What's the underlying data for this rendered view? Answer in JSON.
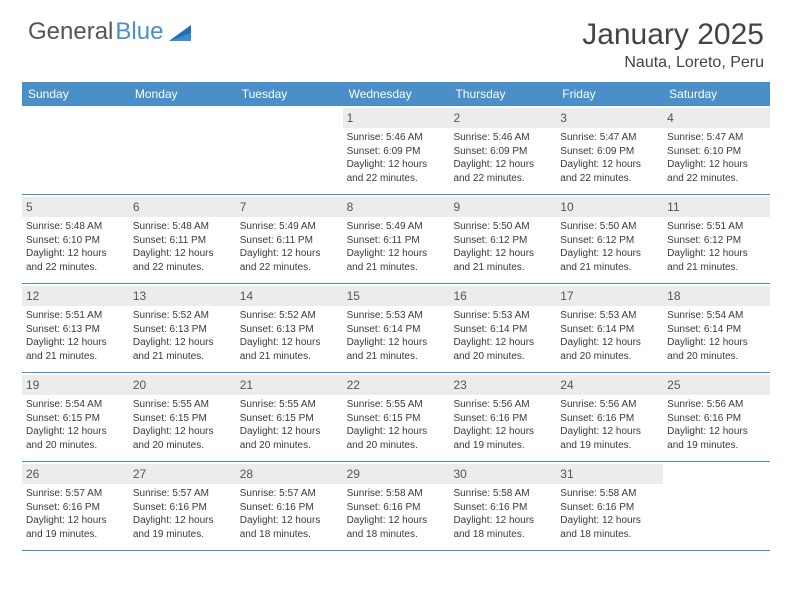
{
  "brand": {
    "part1": "General",
    "part2": "Blue"
  },
  "title": "January 2025",
  "location": "Nauta, Loreto, Peru",
  "colors": {
    "accent": "#4a8fc7",
    "header_bg": "#ececec",
    "text": "#3a3a3a",
    "background": "#ffffff"
  },
  "day_names": [
    "Sunday",
    "Monday",
    "Tuesday",
    "Wednesday",
    "Thursday",
    "Friday",
    "Saturday"
  ],
  "weeks": [
    [
      {
        "n": "",
        "sr": "",
        "ss": "",
        "dl": ""
      },
      {
        "n": "",
        "sr": "",
        "ss": "",
        "dl": ""
      },
      {
        "n": "",
        "sr": "",
        "ss": "",
        "dl": ""
      },
      {
        "n": "1",
        "sr": "Sunrise: 5:46 AM",
        "ss": "Sunset: 6:09 PM",
        "dl": "Daylight: 12 hours and 22 minutes."
      },
      {
        "n": "2",
        "sr": "Sunrise: 5:46 AM",
        "ss": "Sunset: 6:09 PM",
        "dl": "Daylight: 12 hours and 22 minutes."
      },
      {
        "n": "3",
        "sr": "Sunrise: 5:47 AM",
        "ss": "Sunset: 6:09 PM",
        "dl": "Daylight: 12 hours and 22 minutes."
      },
      {
        "n": "4",
        "sr": "Sunrise: 5:47 AM",
        "ss": "Sunset: 6:10 PM",
        "dl": "Daylight: 12 hours and 22 minutes."
      }
    ],
    [
      {
        "n": "5",
        "sr": "Sunrise: 5:48 AM",
        "ss": "Sunset: 6:10 PM",
        "dl": "Daylight: 12 hours and 22 minutes."
      },
      {
        "n": "6",
        "sr": "Sunrise: 5:48 AM",
        "ss": "Sunset: 6:11 PM",
        "dl": "Daylight: 12 hours and 22 minutes."
      },
      {
        "n": "7",
        "sr": "Sunrise: 5:49 AM",
        "ss": "Sunset: 6:11 PM",
        "dl": "Daylight: 12 hours and 22 minutes."
      },
      {
        "n": "8",
        "sr": "Sunrise: 5:49 AM",
        "ss": "Sunset: 6:11 PM",
        "dl": "Daylight: 12 hours and 21 minutes."
      },
      {
        "n": "9",
        "sr": "Sunrise: 5:50 AM",
        "ss": "Sunset: 6:12 PM",
        "dl": "Daylight: 12 hours and 21 minutes."
      },
      {
        "n": "10",
        "sr": "Sunrise: 5:50 AM",
        "ss": "Sunset: 6:12 PM",
        "dl": "Daylight: 12 hours and 21 minutes."
      },
      {
        "n": "11",
        "sr": "Sunrise: 5:51 AM",
        "ss": "Sunset: 6:12 PM",
        "dl": "Daylight: 12 hours and 21 minutes."
      }
    ],
    [
      {
        "n": "12",
        "sr": "Sunrise: 5:51 AM",
        "ss": "Sunset: 6:13 PM",
        "dl": "Daylight: 12 hours and 21 minutes."
      },
      {
        "n": "13",
        "sr": "Sunrise: 5:52 AM",
        "ss": "Sunset: 6:13 PM",
        "dl": "Daylight: 12 hours and 21 minutes."
      },
      {
        "n": "14",
        "sr": "Sunrise: 5:52 AM",
        "ss": "Sunset: 6:13 PM",
        "dl": "Daylight: 12 hours and 21 minutes."
      },
      {
        "n": "15",
        "sr": "Sunrise: 5:53 AM",
        "ss": "Sunset: 6:14 PM",
        "dl": "Daylight: 12 hours and 21 minutes."
      },
      {
        "n": "16",
        "sr": "Sunrise: 5:53 AM",
        "ss": "Sunset: 6:14 PM",
        "dl": "Daylight: 12 hours and 20 minutes."
      },
      {
        "n": "17",
        "sr": "Sunrise: 5:53 AM",
        "ss": "Sunset: 6:14 PM",
        "dl": "Daylight: 12 hours and 20 minutes."
      },
      {
        "n": "18",
        "sr": "Sunrise: 5:54 AM",
        "ss": "Sunset: 6:14 PM",
        "dl": "Daylight: 12 hours and 20 minutes."
      }
    ],
    [
      {
        "n": "19",
        "sr": "Sunrise: 5:54 AM",
        "ss": "Sunset: 6:15 PM",
        "dl": "Daylight: 12 hours and 20 minutes."
      },
      {
        "n": "20",
        "sr": "Sunrise: 5:55 AM",
        "ss": "Sunset: 6:15 PM",
        "dl": "Daylight: 12 hours and 20 minutes."
      },
      {
        "n": "21",
        "sr": "Sunrise: 5:55 AM",
        "ss": "Sunset: 6:15 PM",
        "dl": "Daylight: 12 hours and 20 minutes."
      },
      {
        "n": "22",
        "sr": "Sunrise: 5:55 AM",
        "ss": "Sunset: 6:15 PM",
        "dl": "Daylight: 12 hours and 20 minutes."
      },
      {
        "n": "23",
        "sr": "Sunrise: 5:56 AM",
        "ss": "Sunset: 6:16 PM",
        "dl": "Daylight: 12 hours and 19 minutes."
      },
      {
        "n": "24",
        "sr": "Sunrise: 5:56 AM",
        "ss": "Sunset: 6:16 PM",
        "dl": "Daylight: 12 hours and 19 minutes."
      },
      {
        "n": "25",
        "sr": "Sunrise: 5:56 AM",
        "ss": "Sunset: 6:16 PM",
        "dl": "Daylight: 12 hours and 19 minutes."
      }
    ],
    [
      {
        "n": "26",
        "sr": "Sunrise: 5:57 AM",
        "ss": "Sunset: 6:16 PM",
        "dl": "Daylight: 12 hours and 19 minutes."
      },
      {
        "n": "27",
        "sr": "Sunrise: 5:57 AM",
        "ss": "Sunset: 6:16 PM",
        "dl": "Daylight: 12 hours and 19 minutes."
      },
      {
        "n": "28",
        "sr": "Sunrise: 5:57 AM",
        "ss": "Sunset: 6:16 PM",
        "dl": "Daylight: 12 hours and 18 minutes."
      },
      {
        "n": "29",
        "sr": "Sunrise: 5:58 AM",
        "ss": "Sunset: 6:16 PM",
        "dl": "Daylight: 12 hours and 18 minutes."
      },
      {
        "n": "30",
        "sr": "Sunrise: 5:58 AM",
        "ss": "Sunset: 6:16 PM",
        "dl": "Daylight: 12 hours and 18 minutes."
      },
      {
        "n": "31",
        "sr": "Sunrise: 5:58 AM",
        "ss": "Sunset: 6:16 PM",
        "dl": "Daylight: 12 hours and 18 minutes."
      },
      {
        "n": "",
        "sr": "",
        "ss": "",
        "dl": ""
      }
    ]
  ]
}
